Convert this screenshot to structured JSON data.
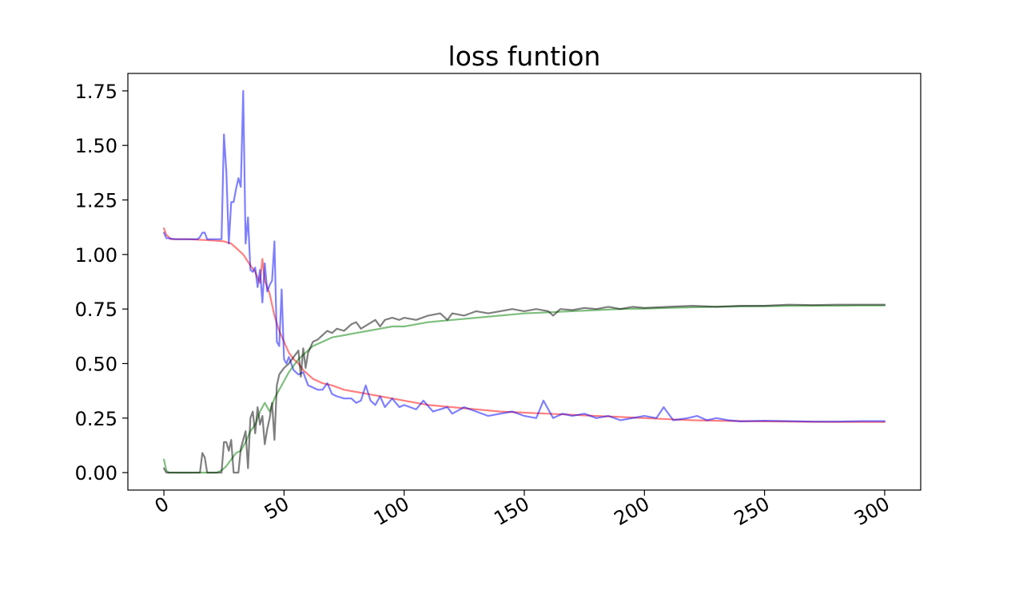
{
  "chart_data": {
    "type": "line",
    "title": "loss funtion",
    "xlabel": "",
    "ylabel": "",
    "xlim": [
      -15,
      315
    ],
    "ylim": [
      -0.08,
      1.83
    ],
    "x_ticks": [
      0,
      50,
      100,
      150,
      200,
      250,
      300
    ],
    "y_ticks": [
      0.0,
      0.25,
      0.5,
      0.75,
      1.0,
      1.25,
      1.5,
      1.75
    ],
    "x_tick_labels": [
      "0",
      "50",
      "100",
      "150",
      "200",
      "250",
      "300"
    ],
    "y_tick_labels": [
      "0.00",
      "0.25",
      "0.50",
      "0.75",
      "1.00",
      "1.25",
      "1.50",
      "1.75"
    ],
    "grid": false,
    "series": [
      {
        "color": "#ff0000",
        "alpha": 0.5,
        "points": [
          [
            0,
            1.12
          ],
          [
            1,
            1.09
          ],
          [
            3,
            1.07
          ],
          [
            10,
            1.07
          ],
          [
            20,
            1.065
          ],
          [
            25,
            1.06
          ],
          [
            28,
            1.05
          ],
          [
            30,
            1.03
          ],
          [
            33,
            1.0
          ],
          [
            36,
            0.95
          ],
          [
            38,
            0.92
          ],
          [
            40,
            0.87
          ],
          [
            41,
            0.98
          ],
          [
            42,
            0.88
          ],
          [
            44,
            0.82
          ],
          [
            46,
            0.72
          ],
          [
            48,
            0.65
          ],
          [
            50,
            0.6
          ],
          [
            52,
            0.55
          ],
          [
            54,
            0.52
          ],
          [
            56,
            0.5
          ],
          [
            58,
            0.47
          ],
          [
            60,
            0.45
          ],
          [
            62,
            0.43
          ],
          [
            64,
            0.42
          ],
          [
            66,
            0.41
          ],
          [
            70,
            0.4
          ],
          [
            75,
            0.38
          ],
          [
            80,
            0.37
          ],
          [
            85,
            0.36
          ],
          [
            90,
            0.35
          ],
          [
            95,
            0.34
          ],
          [
            100,
            0.33
          ],
          [
            110,
            0.31
          ],
          [
            120,
            0.3
          ],
          [
            130,
            0.29
          ],
          [
            140,
            0.28
          ],
          [
            150,
            0.275
          ],
          [
            160,
            0.27
          ],
          [
            170,
            0.265
          ],
          [
            180,
            0.26
          ],
          [
            190,
            0.255
          ],
          [
            200,
            0.25
          ],
          [
            210,
            0.245
          ],
          [
            220,
            0.24
          ],
          [
            230,
            0.238
          ],
          [
            240,
            0.236
          ],
          [
            250,
            0.235
          ],
          [
            260,
            0.234
          ],
          [
            270,
            0.233
          ],
          [
            280,
            0.232
          ],
          [
            290,
            0.232
          ],
          [
            300,
            0.232
          ]
        ]
      },
      {
        "color": "#0000ff",
        "alpha": 0.5,
        "points": [
          [
            0,
            1.1
          ],
          [
            1,
            1.075
          ],
          [
            5,
            1.07
          ],
          [
            10,
            1.07
          ],
          [
            14,
            1.07
          ],
          [
            15,
            1.08
          ],
          [
            16,
            1.1
          ],
          [
            17,
            1.1
          ],
          [
            18,
            1.07
          ],
          [
            20,
            1.07
          ],
          [
            24,
            1.07
          ],
          [
            25,
            1.55
          ],
          [
            26,
            1.38
          ],
          [
            27,
            1.05
          ],
          [
            28,
            1.24
          ],
          [
            29,
            1.24
          ],
          [
            30,
            1.3
          ],
          [
            31,
            1.35
          ],
          [
            32,
            1.31
          ],
          [
            33,
            1.75
          ],
          [
            34,
            1.05
          ],
          [
            35,
            1.17
          ],
          [
            36,
            0.93
          ],
          [
            37,
            0.92
          ],
          [
            38,
            0.94
          ],
          [
            39,
            0.85
          ],
          [
            40,
            0.93
          ],
          [
            41,
            0.78
          ],
          [
            42,
            0.96
          ],
          [
            43,
            0.83
          ],
          [
            44,
            0.86
          ],
          [
            45,
            0.88
          ],
          [
            46,
            1.06
          ],
          [
            47,
            0.6
          ],
          [
            48,
            0.58
          ],
          [
            49,
            0.84
          ],
          [
            50,
            0.52
          ],
          [
            51,
            0.5
          ],
          [
            52,
            0.53
          ],
          [
            54,
            0.47
          ],
          [
            56,
            0.45
          ],
          [
            58,
            0.46
          ],
          [
            60,
            0.4
          ],
          [
            62,
            0.39
          ],
          [
            64,
            0.38
          ],
          [
            66,
            0.38
          ],
          [
            68,
            0.41
          ],
          [
            70,
            0.36
          ],
          [
            72,
            0.35
          ],
          [
            75,
            0.34
          ],
          [
            78,
            0.34
          ],
          [
            80,
            0.32
          ],
          [
            82,
            0.33
          ],
          [
            84,
            0.4
          ],
          [
            86,
            0.33
          ],
          [
            88,
            0.31
          ],
          [
            90,
            0.35
          ],
          [
            92,
            0.3
          ],
          [
            95,
            0.34
          ],
          [
            98,
            0.3
          ],
          [
            100,
            0.31
          ],
          [
            105,
            0.29
          ],
          [
            108,
            0.33
          ],
          [
            112,
            0.28
          ],
          [
            118,
            0.3
          ],
          [
            120,
            0.27
          ],
          [
            125,
            0.3
          ],
          [
            130,
            0.28
          ],
          [
            135,
            0.26
          ],
          [
            140,
            0.27
          ],
          [
            145,
            0.28
          ],
          [
            150,
            0.26
          ],
          [
            155,
            0.25
          ],
          [
            158,
            0.33
          ],
          [
            162,
            0.25
          ],
          [
            166,
            0.27
          ],
          [
            170,
            0.26
          ],
          [
            175,
            0.27
          ],
          [
            180,
            0.25
          ],
          [
            185,
            0.26
          ],
          [
            190,
            0.24
          ],
          [
            195,
            0.25
          ],
          [
            200,
            0.26
          ],
          [
            205,
            0.25
          ],
          [
            208,
            0.3
          ],
          [
            212,
            0.24
          ],
          [
            218,
            0.25
          ],
          [
            222,
            0.26
          ],
          [
            226,
            0.24
          ],
          [
            230,
            0.25
          ],
          [
            235,
            0.24
          ],
          [
            240,
            0.235
          ],
          [
            250,
            0.238
          ],
          [
            260,
            0.236
          ],
          [
            270,
            0.234
          ],
          [
            280,
            0.234
          ],
          [
            290,
            0.236
          ],
          [
            300,
            0.236
          ]
        ]
      },
      {
        "color": "#008000",
        "alpha": 0.5,
        "points": [
          [
            0,
            0.06
          ],
          [
            1,
            0.01
          ],
          [
            2,
            0.0
          ],
          [
            20,
            0.0
          ],
          [
            22,
            0.0
          ],
          [
            24,
            0.01
          ],
          [
            26,
            0.03
          ],
          [
            28,
            0.06
          ],
          [
            30,
            0.09
          ],
          [
            32,
            0.1
          ],
          [
            34,
            0.14
          ],
          [
            36,
            0.19
          ],
          [
            38,
            0.22
          ],
          [
            40,
            0.28
          ],
          [
            42,
            0.32
          ],
          [
            44,
            0.28
          ],
          [
            46,
            0.34
          ],
          [
            48,
            0.38
          ],
          [
            50,
            0.42
          ],
          [
            52,
            0.46
          ],
          [
            54,
            0.49
          ],
          [
            56,
            0.52
          ],
          [
            58,
            0.54
          ],
          [
            60,
            0.56
          ],
          [
            62,
            0.58
          ],
          [
            64,
            0.59
          ],
          [
            66,
            0.6
          ],
          [
            70,
            0.62
          ],
          [
            75,
            0.63
          ],
          [
            80,
            0.64
          ],
          [
            85,
            0.65
          ],
          [
            90,
            0.66
          ],
          [
            95,
            0.67
          ],
          [
            100,
            0.67
          ],
          [
            110,
            0.69
          ],
          [
            120,
            0.7
          ],
          [
            130,
            0.71
          ],
          [
            140,
            0.72
          ],
          [
            150,
            0.73
          ],
          [
            160,
            0.735
          ],
          [
            170,
            0.74
          ],
          [
            180,
            0.745
          ],
          [
            190,
            0.75
          ],
          [
            200,
            0.752
          ],
          [
            210,
            0.755
          ],
          [
            220,
            0.758
          ],
          [
            230,
            0.76
          ],
          [
            240,
            0.762
          ],
          [
            250,
            0.763
          ],
          [
            260,
            0.764
          ],
          [
            270,
            0.765
          ],
          [
            280,
            0.765
          ],
          [
            290,
            0.766
          ],
          [
            300,
            0.766
          ]
        ]
      },
      {
        "color": "#000000",
        "alpha": 0.5,
        "points": [
          [
            0,
            0.02
          ],
          [
            1,
            0.0
          ],
          [
            2,
            0.0
          ],
          [
            15,
            0.0
          ],
          [
            16,
            0.09
          ],
          [
            17,
            0.07
          ],
          [
            18,
            0.0
          ],
          [
            24,
            0.0
          ],
          [
            25,
            0.14
          ],
          [
            26,
            0.14
          ],
          [
            27,
            0.1
          ],
          [
            28,
            0.15
          ],
          [
            29,
            0.0
          ],
          [
            31,
            0.0
          ],
          [
            32,
            0.11
          ],
          [
            33,
            0.15
          ],
          [
            34,
            0.19
          ],
          [
            35,
            0.02
          ],
          [
            36,
            0.25
          ],
          [
            37,
            0.28
          ],
          [
            38,
            0.18
          ],
          [
            39,
            0.3
          ],
          [
            40,
            0.22
          ],
          [
            41,
            0.26
          ],
          [
            42,
            0.13
          ],
          [
            43,
            0.2
          ],
          [
            44,
            0.25
          ],
          [
            45,
            0.32
          ],
          [
            46,
            0.15
          ],
          [
            47,
            0.4
          ],
          [
            48,
            0.45
          ],
          [
            50,
            0.48
          ],
          [
            52,
            0.5
          ],
          [
            54,
            0.53
          ],
          [
            56,
            0.56
          ],
          [
            57,
            0.44
          ],
          [
            58,
            0.57
          ],
          [
            59,
            0.48
          ],
          [
            60,
            0.55
          ],
          [
            62,
            0.6
          ],
          [
            64,
            0.61
          ],
          [
            66,
            0.63
          ],
          [
            68,
            0.65
          ],
          [
            70,
            0.64
          ],
          [
            72,
            0.66
          ],
          [
            75,
            0.65
          ],
          [
            78,
            0.68
          ],
          [
            80,
            0.69
          ],
          [
            82,
            0.66
          ],
          [
            85,
            0.68
          ],
          [
            88,
            0.7
          ],
          [
            90,
            0.67
          ],
          [
            92,
            0.7
          ],
          [
            95,
            0.71
          ],
          [
            98,
            0.7
          ],
          [
            100,
            0.71
          ],
          [
            105,
            0.7
          ],
          [
            110,
            0.72
          ],
          [
            115,
            0.73
          ],
          [
            118,
            0.7
          ],
          [
            120,
            0.73
          ],
          [
            125,
            0.72
          ],
          [
            130,
            0.74
          ],
          [
            135,
            0.73
          ],
          [
            140,
            0.74
          ],
          [
            145,
            0.75
          ],
          [
            150,
            0.74
          ],
          [
            155,
            0.75
          ],
          [
            160,
            0.74
          ],
          [
            162,
            0.72
          ],
          [
            165,
            0.75
          ],
          [
            170,
            0.745
          ],
          [
            175,
            0.755
          ],
          [
            180,
            0.75
          ],
          [
            185,
            0.76
          ],
          [
            190,
            0.75
          ],
          [
            195,
            0.76
          ],
          [
            200,
            0.755
          ],
          [
            210,
            0.76
          ],
          [
            220,
            0.765
          ],
          [
            230,
            0.76
          ],
          [
            240,
            0.765
          ],
          [
            250,
            0.765
          ],
          [
            260,
            0.77
          ],
          [
            270,
            0.768
          ],
          [
            280,
            0.77
          ],
          [
            290,
            0.77
          ],
          [
            300,
            0.77
          ]
        ]
      }
    ]
  }
}
